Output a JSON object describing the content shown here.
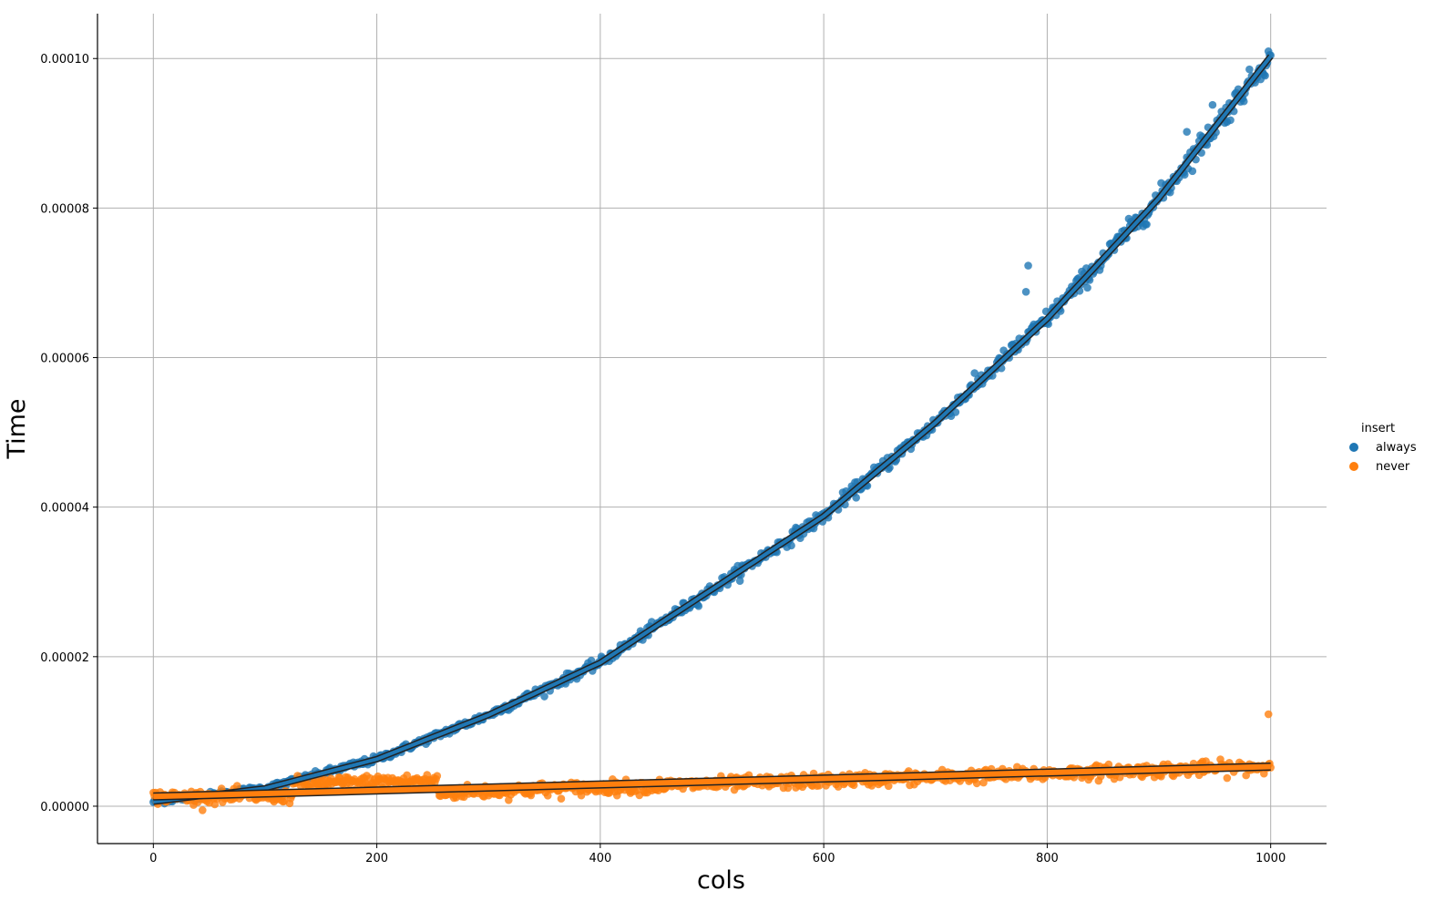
{
  "chart_data": {
    "type": "scatter",
    "xlabel": "cols",
    "ylabel": "Time",
    "xlim": [
      -50,
      1050
    ],
    "ylim": [
      -5e-06,
      0.000106
    ],
    "x_ticks": [
      0,
      200,
      400,
      600,
      800,
      1000
    ],
    "x_tick_labels": [
      "0",
      "200",
      "400",
      "600",
      "800",
      "1000"
    ],
    "y_ticks": [
      0,
      2e-05,
      4e-05,
      6e-05,
      8e-05,
      0.0001
    ],
    "y_tick_labels": [
      "0.00000",
      "0.00002",
      "0.00004",
      "0.00006",
      "0.00008",
      "0.00010"
    ],
    "grid": true,
    "legend": {
      "title": "insert",
      "placement": "right"
    },
    "series": [
      {
        "name": "always",
        "color": "#1f77b4",
        "trend": "quadratic",
        "trend_points": [
          [
            0,
            6e-07
          ],
          [
            100,
            2.4e-06
          ],
          [
            200,
            6.3e-06
          ],
          [
            300,
            1.22e-05
          ],
          [
            400,
            1.92e-05
          ],
          [
            500,
            2.9e-05
          ],
          [
            600,
            3.88e-05
          ],
          [
            700,
            5.13e-05
          ],
          [
            800,
            6.52e-05
          ],
          [
            900,
            8.13e-05
          ],
          [
            1000,
            0.0001003
          ]
        ],
        "outliers": [
          [
            783,
            7.23e-05
          ],
          [
            781,
            6.88e-05
          ],
          [
            925,
            9.02e-05
          ],
          [
            948,
            9.38e-05
          ]
        ]
      },
      {
        "name": "never",
        "color": "#ff7f0e",
        "trend": "linear",
        "trend_points": [
          [
            0,
            1.3e-06
          ],
          [
            1000,
            5.3e-06
          ]
        ],
        "segments": [
          {
            "x_range": [
              0,
              125
            ],
            "level": "low"
          },
          {
            "x_range": [
              125,
              255
            ],
            "level": "elevated"
          },
          {
            "x_range": [
              255,
              1000
            ],
            "level": "trend"
          }
        ],
        "outliers": [
          [
            998,
            1.23e-05
          ]
        ]
      }
    ]
  }
}
